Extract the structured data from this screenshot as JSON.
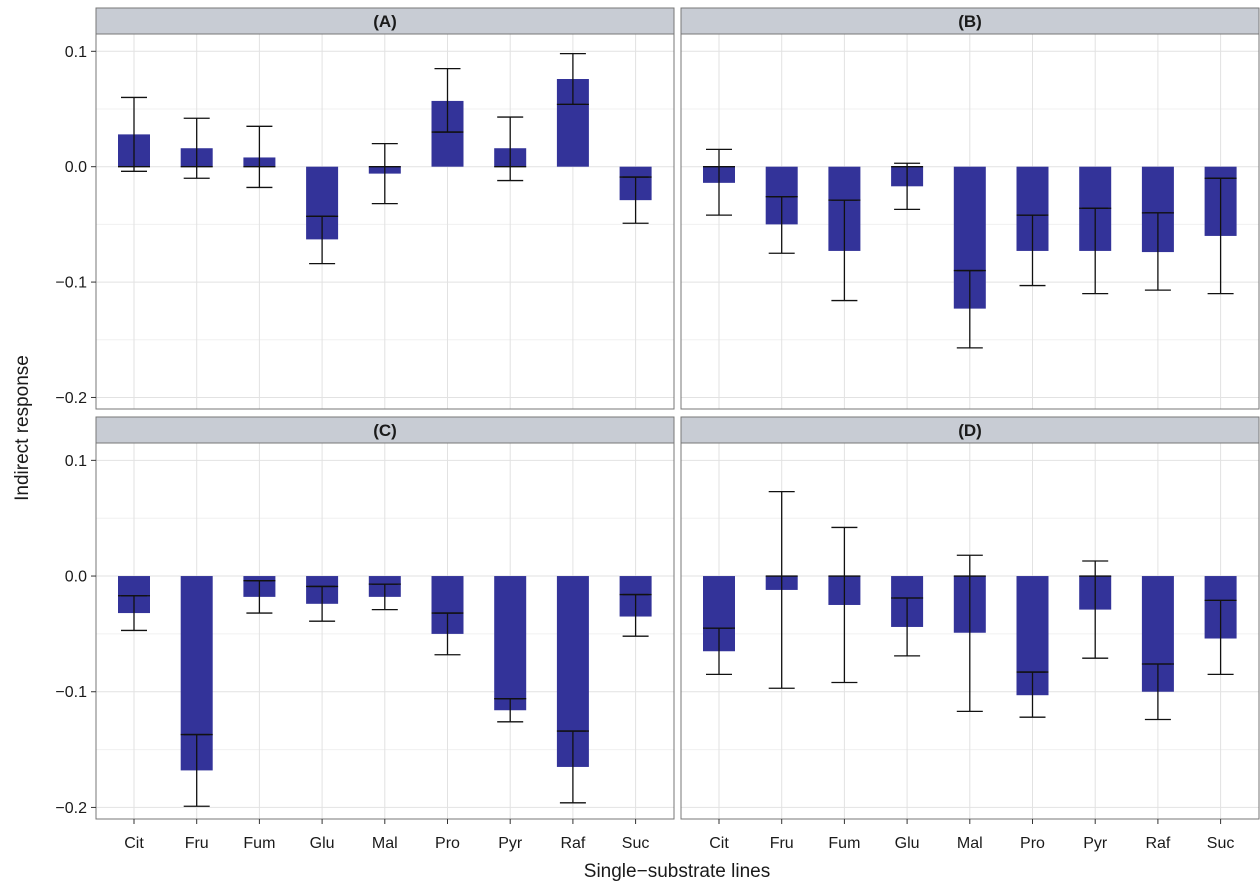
{
  "chart_data": {
    "type": "bar",
    "xlabel": "Single−substrate lines",
    "ylabel": "Indirect response",
    "ylim": [
      -0.21,
      0.115
    ],
    "yticks": [
      0.1,
      0.0,
      -0.1,
      -0.2
    ],
    "ytick_labels": [
      "0.1",
      "0.0",
      "−0.1",
      "−0.2"
    ],
    "categories": [
      "Cit",
      "Fru",
      "Fum",
      "Glu",
      "Mal",
      "Pro",
      "Pyr",
      "Raf",
      "Suc"
    ],
    "bar_color": "#333399",
    "strip_color": "#c8ccd4",
    "grid": true,
    "panels": [
      {
        "label": "(A)",
        "values": [
          0.028,
          0.016,
          0.008,
          -0.063,
          -0.006,
          0.057,
          0.016,
          0.076,
          -0.029
        ],
        "inner": [
          0.0,
          0.0,
          0.0,
          -0.043,
          0.0,
          0.03,
          0.0,
          0.054,
          -0.009
        ],
        "err_low": [
          -0.004,
          -0.01,
          -0.018,
          -0.084,
          -0.032,
          0.03,
          -0.012,
          0.054,
          -0.049
        ],
        "err_high": [
          0.06,
          0.042,
          0.035,
          -0.043,
          0.02,
          0.085,
          0.043,
          0.098,
          -0.009
        ]
      },
      {
        "label": "(B)",
        "values": [
          -0.014,
          -0.05,
          -0.073,
          -0.017,
          -0.123,
          -0.073,
          -0.073,
          -0.074,
          -0.06
        ],
        "inner": [
          0.0,
          -0.026,
          -0.029,
          0.0,
          -0.09,
          -0.042,
          -0.036,
          -0.04,
          -0.01
        ],
        "err_low": [
          -0.042,
          -0.075,
          -0.116,
          -0.037,
          -0.157,
          -0.103,
          -0.11,
          -0.107,
          -0.11
        ],
        "err_high": [
          0.015,
          -0.026,
          -0.029,
          0.003,
          -0.09,
          -0.042,
          -0.036,
          -0.04,
          -0.01
        ]
      },
      {
        "label": "(C)",
        "values": [
          -0.032,
          -0.168,
          -0.018,
          -0.024,
          -0.018,
          -0.05,
          -0.116,
          -0.165,
          -0.035
        ],
        "inner": [
          -0.017,
          -0.137,
          -0.004,
          -0.009,
          -0.007,
          -0.032,
          -0.106,
          -0.134,
          -0.016
        ],
        "err_low": [
          -0.047,
          -0.199,
          -0.032,
          -0.039,
          -0.029,
          -0.068,
          -0.126,
          -0.196,
          -0.052
        ],
        "err_high": [
          -0.017,
          -0.137,
          -0.004,
          -0.009,
          -0.007,
          -0.032,
          -0.106,
          -0.134,
          -0.016
        ]
      },
      {
        "label": "(D)",
        "values": [
          -0.065,
          -0.012,
          -0.025,
          -0.044,
          -0.049,
          -0.103,
          -0.029,
          -0.1,
          -0.054
        ],
        "inner": [
          -0.045,
          0.0,
          0.0,
          -0.019,
          0.0,
          -0.083,
          0.0,
          -0.076,
          -0.021
        ],
        "err_low": [
          -0.085,
          -0.097,
          -0.092,
          -0.069,
          -0.117,
          -0.122,
          -0.071,
          -0.124,
          -0.085
        ],
        "err_high": [
          -0.045,
          0.073,
          0.042,
          -0.019,
          0.018,
          -0.083,
          0.013,
          -0.076,
          -0.021
        ]
      }
    ]
  }
}
